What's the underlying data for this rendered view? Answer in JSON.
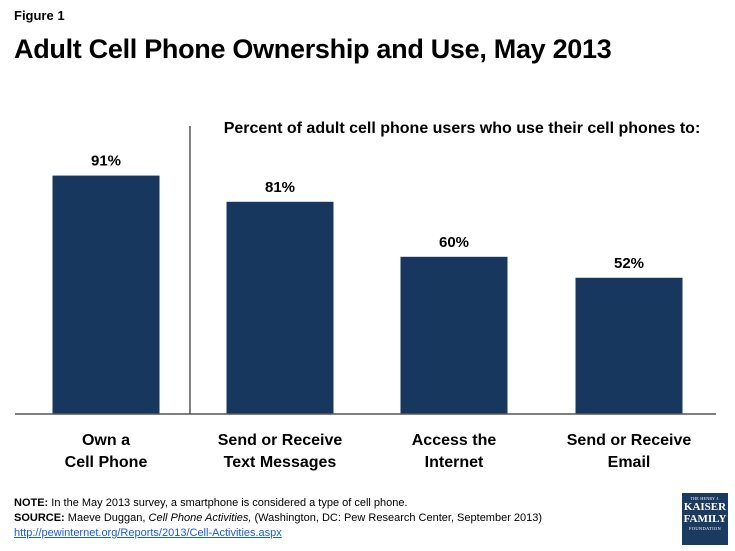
{
  "figure_label": "Figure 1",
  "title": "Adult Cell Phone Ownership and Use, May 2013",
  "chart_data": {
    "type": "bar",
    "subtitle": "Percent  of adult cell phone users  who use their cell phones to:",
    "categories": [
      [
        "Own a",
        "Cell Phone"
      ],
      [
        "Send or Receive",
        "Text Messages"
      ],
      [
        "Access the",
        "Internet"
      ],
      [
        "Send or Receive",
        "Email"
      ]
    ],
    "values": [
      91,
      81,
      60,
      52
    ],
    "value_labels": [
      "91%",
      "81%",
      "60%",
      "52%"
    ],
    "ylim": [
      0,
      100
    ],
    "bar_color": "#17375e",
    "grid": false,
    "legend": "none"
  },
  "footer": {
    "note_label": "NOTE:",
    "note_text": " In the May 2013 survey, a smartphone is considered a type of cell phone.",
    "source_label": "SOURCE:",
    "source_author": " Maeve Duggan, ",
    "source_title": "Cell Phone Activities,",
    "source_rest": " (Washington, DC: Pew Research Center, September 2013)",
    "source_url": "http://pewinternet.org/Reports/2013/Cell-Activities.aspx"
  },
  "logo": {
    "line1": "THE HENRY J.",
    "line2": "KAISER",
    "line3": "FAMILY",
    "line4": "FOUNDATION"
  }
}
